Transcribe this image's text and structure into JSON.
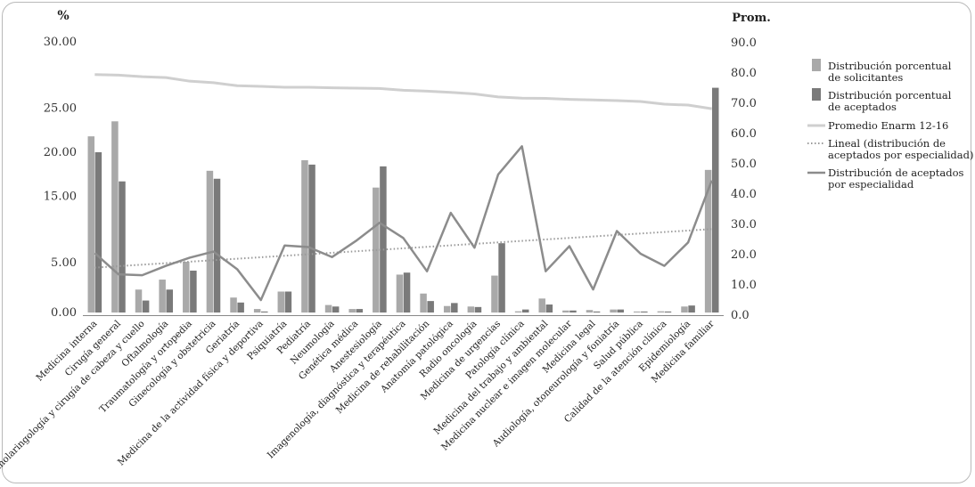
{
  "chart_data": {
    "type": "bar",
    "left_axis_title": "%",
    "right_axis_title": "Prom.",
    "left_axis_ticks": [
      "0.00",
      "5.00",
      "15.00",
      "20.00",
      "25.00",
      "30.00"
    ],
    "right_axis_ticks": [
      "0.0",
      "10.0",
      "20.0",
      "30.0",
      "40.0",
      "50.0",
      "60.0",
      "70.0",
      "80.0",
      "90.0"
    ],
    "categories": [
      "Medicina interna",
      "Cirugía general",
      "Otorrinolaringología y cirugía de cabeza y cuello",
      "Oftalmología",
      "Traumatología y ortopedia",
      "Ginecología y obstetricia",
      "Geriatría",
      "Medicina de la actividad física y deportiva",
      "Psiquiatría",
      "Pediatría",
      "Neumología",
      "Genética médica",
      "Anestesiología",
      "Imagenología, diagnóstica y terapéutica",
      "Medicina de rehabilitación",
      "Anatomía patológica",
      "Radio oncología",
      "Medicina de urgencias",
      "Patología clínica",
      "Medicina del trabajo y ambiental",
      "Medicina nuclear e imagen molecular",
      "Medicina legal",
      "Audiología, otoneurología y foniatría",
      "Salud pública",
      "Calidad de la atención clínica",
      "Epidemiología",
      "Medicina familiar"
    ],
    "series": [
      {
        "name": "Distribución porcentual de solicitantes",
        "axis": "left",
        "kind": "bar",
        "color": "#a9a9a9",
        "values": [
          19.3,
          21.0,
          2.3,
          3.3,
          5.1,
          15.4,
          1.5,
          0.35,
          2.1,
          16.6,
          0.75,
          0.35,
          13.5,
          3.8,
          1.9,
          0.65,
          0.6,
          3.7,
          0.12,
          1.4,
          0.2,
          0.25,
          0.3,
          0.1,
          0.12,
          0.6,
          15.5
        ]
      },
      {
        "name": "Distribución porcentual de aceptados",
        "axis": "left",
        "kind": "bar",
        "color": "#7a7a7a",
        "values": [
          17.5,
          14.2,
          1.2,
          2.3,
          4.2,
          14.5,
          1.0,
          0.1,
          2.1,
          16.1,
          0.6,
          0.35,
          15.9,
          4.0,
          1.15,
          0.95,
          0.55,
          7.2,
          0.3,
          0.8,
          0.2,
          0.1,
          0.3,
          0.1,
          0.1,
          0.7,
          24.8
        ]
      },
      {
        "name": "Promedio Enarm 12-16",
        "axis": "right",
        "kind": "line",
        "color": "#cfcfcf",
        "values": [
          79.5,
          79.3,
          78.8,
          78.5,
          77.3,
          76.8,
          75.8,
          75.6,
          75.3,
          75.3,
          75.1,
          75.0,
          74.9,
          74.3,
          74.0,
          73.6,
          73.1,
          72.1,
          71.7,
          71.6,
          71.3,
          71.1,
          70.9,
          70.6,
          69.7,
          69.4,
          68.2
        ]
      },
      {
        "name": "Lineal (distribución de aceptados por especialidad)",
        "axis": "left",
        "kind": "trendline",
        "color": "#9a9a9a",
        "start": 4.5,
        "end": 8.8
      },
      {
        "name": "Distribución de aceptados por especialidad",
        "axis": "right",
        "kind": "line",
        "color": "#8c8c8c",
        "values": [
          20.5,
          13.5,
          13.2,
          16.3,
          19.0,
          21.0,
          15.2,
          5.0,
          23.0,
          22.5,
          19.2,
          24.5,
          30.5,
          25.5,
          14.5,
          33.8,
          22.3,
          46.5,
          55.8,
          14.5,
          22.8,
          8.5,
          27.8,
          20.3,
          16.3,
          24.0,
          44.5
        ]
      }
    ],
    "legend_labels": [
      [
        "Distribución porcentual",
        "de solicitantes"
      ],
      [
        "Distribución porcentual",
        "de aceptados"
      ],
      [
        "Promedio Enarm 12-16"
      ],
      [
        "Lineal (distribución de",
        "aceptados por especialidad)"
      ],
      [
        "Distribución de aceptados",
        "por especialidad"
      ]
    ],
    "legend_position": "right"
  }
}
